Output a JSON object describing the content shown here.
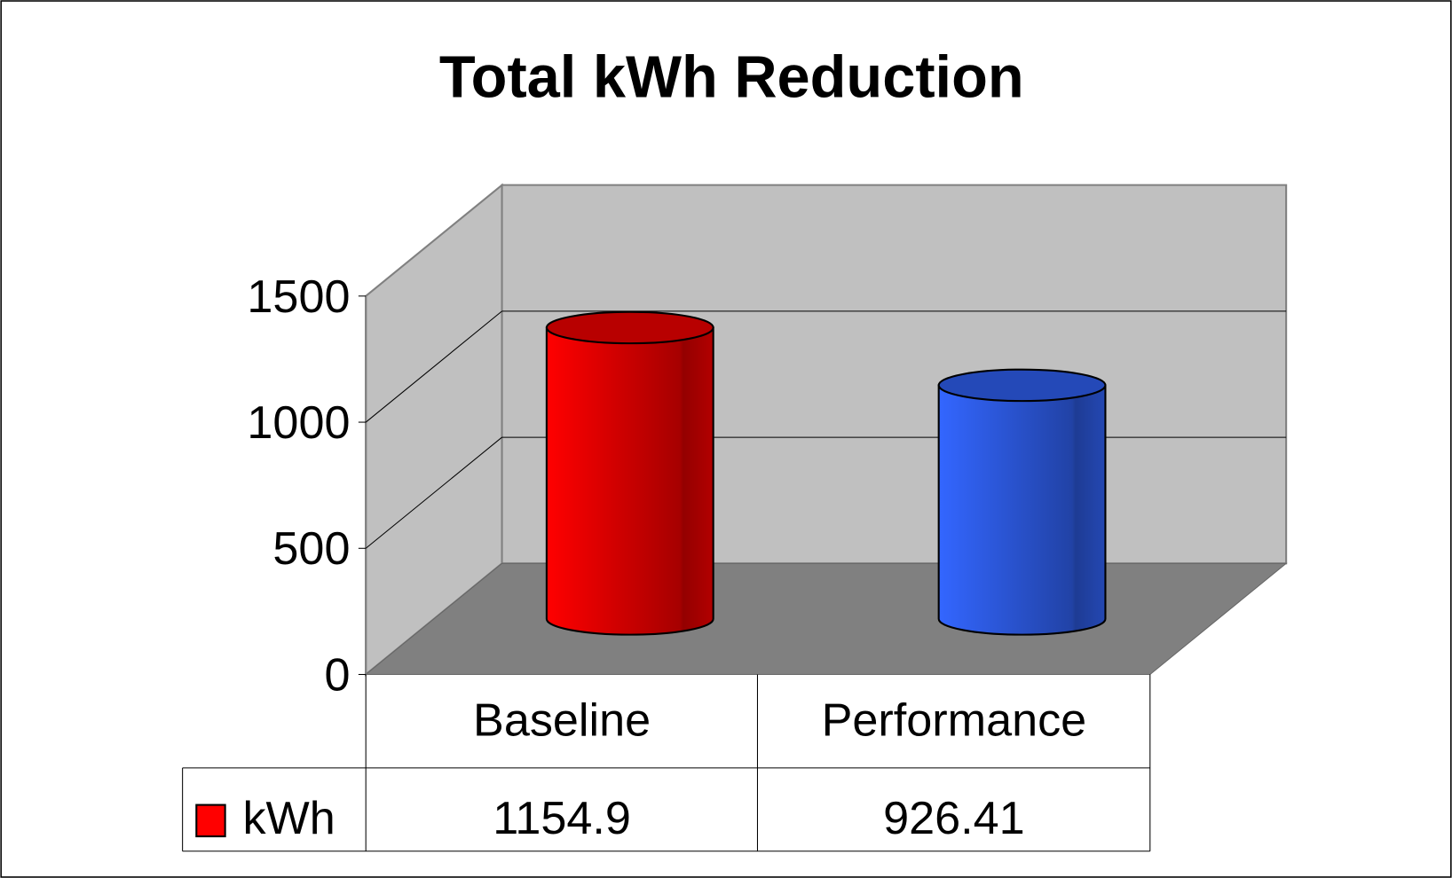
{
  "chart_data": {
    "type": "bar3d_cylinder",
    "title": "Total kWh Reduction",
    "categories": [
      "Baseline",
      "Performance"
    ],
    "series": [
      {
        "name": "kWh",
        "color": "#ff0000",
        "values": [
          1154.9,
          926.41
        ]
      }
    ],
    "point_colors": [
      "#ff0000",
      "#3366ff"
    ],
    "ylim": [
      0,
      1500
    ],
    "yticks": [
      0,
      500,
      1000,
      1500
    ],
    "grid": true,
    "legend": "table"
  }
}
